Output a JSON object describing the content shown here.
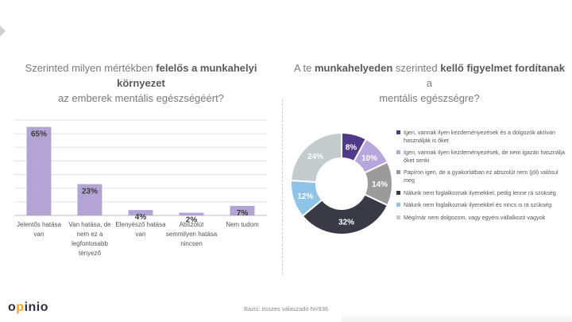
{
  "left_title": {
    "normal1": "Szerinted milyen mértékben ",
    "bold1": "felelős a munkahelyi környezet",
    "line2": "az emberek mentális egészségéért?"
  },
  "right_title": {
    "normal1": "A te ",
    "bold1": "munkahelyeden",
    "normal2": " szerinted ",
    "bold2": "kellő figyelmet fordítanak",
    "normal3": " a",
    "line2": "mentális egészségre?"
  },
  "chart_data": [
    {
      "type": "bar",
      "categories": [
        "Jelentős hatása van",
        "Van hatása, de nem ez a legfontosabb tényező",
        "Elenyésző hatása van",
        "Abszolút semmilyen hatása nincsen",
        "Nem tudom"
      ],
      "values": [
        65,
        23,
        4,
        2,
        7
      ],
      "value_labels": [
        "65%",
        "23%",
        "4%",
        "2%",
        "7%"
      ],
      "ylim": [
        0,
        70
      ],
      "grid": true,
      "color": "#b4a4d6"
    },
    {
      "type": "pie",
      "style": "donut",
      "categories": [
        "Igen, vannak ilyen kezdeményezések és a dolgozók aktívan használják is őket",
        "Igen, vannak ilyen kezdeményezések, de nem igazán használja őket senki",
        "Papíron igen, de a gyakorlatban ez abszolút nem (jól) valósul meg",
        "Nálunk nem foglalkoznak ilyenekkel, pedig lenne rá szükség",
        "Nálunk nem foglalkoznak ilyenekkel és nincs is rá szükség",
        "Még/már nem dolgozom, vagy egyéni vállalkozó vagyok"
      ],
      "values": [
        8,
        10,
        14,
        32,
        12,
        24
      ],
      "value_labels": [
        "8%",
        "10%",
        "14%",
        "32%",
        "12%",
        "24%"
      ],
      "colors": [
        "#4e3a87",
        "#b6a6dc",
        "#9b9b9b",
        "#3a3a46",
        "#8fc3e8",
        "#c3cbcc"
      ],
      "legend_position": "right"
    }
  ],
  "footer": {
    "text": "Bázis: összes válaszadó N=936"
  },
  "logo": {
    "pre": "o",
    "accent": "p",
    "post": "inio"
  }
}
